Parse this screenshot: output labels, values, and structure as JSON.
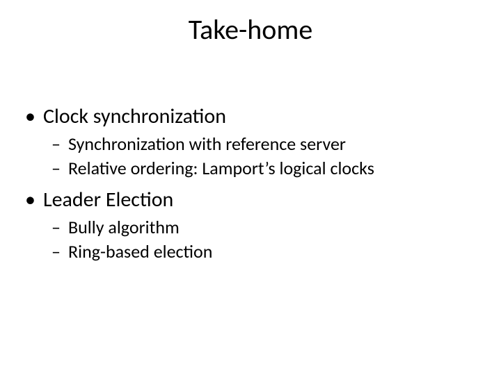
{
  "slide": {
    "title": "Take-home",
    "background_color": "#ffffff",
    "text_color": "#000000",
    "title_fontsize": 40,
    "level1_fontsize": 30,
    "level2_fontsize": 26,
    "font_family": "Calibri",
    "bullets": [
      {
        "text": "Clock synchronization",
        "subitems": [
          "Synchronization with reference server",
          "Relative ordering: Lamport’s logical clocks"
        ]
      },
      {
        "text": "Leader Election",
        "subitems": [
          "Bully algorithm",
          "Ring-based election"
        ]
      }
    ]
  }
}
